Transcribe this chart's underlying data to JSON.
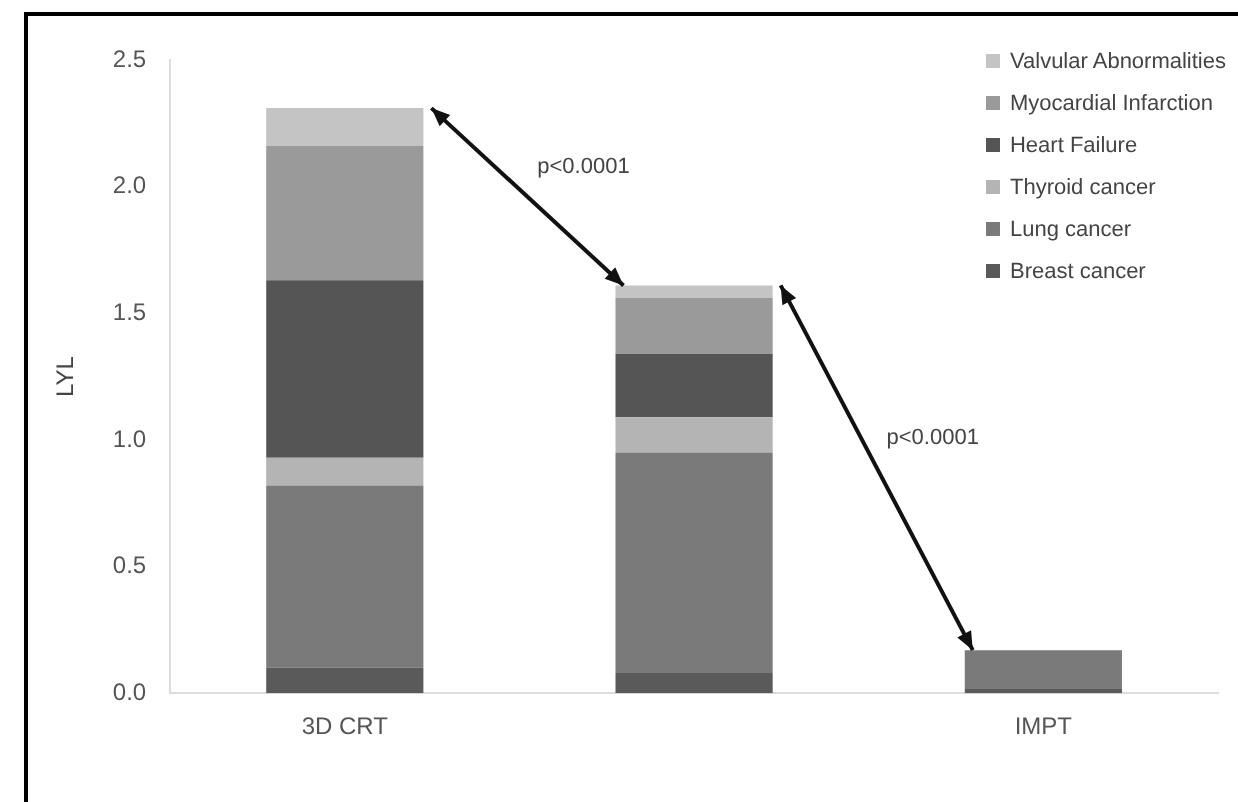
{
  "chart_data": {
    "type": "bar",
    "stacked": true,
    "ylabel": "LYL",
    "categories": [
      "3D CRT",
      null,
      "IMPT"
    ],
    "series": [
      {
        "name": "Breast cancer",
        "color": "#5a5a5a",
        "values": [
          0.1,
          0.08,
          0.02
        ]
      },
      {
        "name": "Lung cancer",
        "color": "#7a7a7a",
        "values": [
          0.72,
          0.87,
          0.15
        ]
      },
      {
        "name": "Thyroid cancer",
        "color": "#b4b4b4",
        "values": [
          0.11,
          0.14,
          null
        ]
      },
      {
        "name": "Heart Failure",
        "color": "#555555",
        "values": [
          0.7,
          0.25,
          null
        ]
      },
      {
        "name": "Myocardial Infarction",
        "color": "#9a9a9a",
        "values": [
          0.53,
          0.22,
          null
        ]
      },
      {
        "name": "Valvular Abnormalities",
        "color": "#c4c4c4",
        "values": [
          0.15,
          0.05,
          null
        ]
      }
    ],
    "ylim": [
      0,
      2.5
    ],
    "yticks": [
      {
        "value": 0,
        "label": "0.0"
      },
      {
        "value": 0.5,
        "label": "0.5"
      },
      {
        "value": 1,
        "label": "1.0"
      },
      {
        "value": 1.5,
        "label": "1.5"
      },
      {
        "value": 2,
        "label": "2.0"
      },
      {
        "value": 2.5,
        "label": "2.5"
      }
    ],
    "grid": false,
    "legend": "top right",
    "annotations": [
      "p<0.0001",
      "p<0.0001"
    ]
  }
}
